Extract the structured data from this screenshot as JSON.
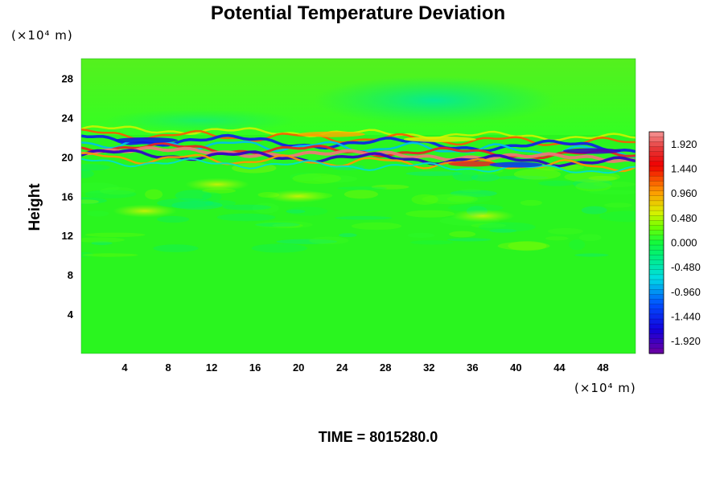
{
  "chart_data": {
    "type": "heatmap",
    "title": "Potential Temperature Deviation",
    "ylabel": "Height",
    "x_unit_label": "(×10⁴ m)",
    "y_unit_label": "(×10⁴ m)",
    "footer": "TIME = 8015280.0",
    "xlim": [
      0,
      51
    ],
    "ylim": [
      0,
      30
    ],
    "x_ticks": [
      4,
      8,
      12,
      16,
      20,
      24,
      28,
      32,
      36,
      40,
      44,
      48
    ],
    "y_ticks": [
      4,
      8,
      12,
      16,
      20,
      24,
      28
    ],
    "colorbar": {
      "range": [
        -2.16,
        2.16
      ],
      "tick_values": [
        1.92,
        1.44,
        0.96,
        0.48,
        0.0,
        -0.48,
        -0.96,
        -1.44,
        -1.92
      ],
      "tick_labels": [
        "1.920",
        "1.440",
        "0.960",
        "0.480",
        "0.000",
        "-0.480",
        "-0.960",
        "-1.440",
        "-1.920"
      ]
    },
    "features": {
      "background_value": 0.05,
      "upper_layer_value": -0.4,
      "perturbed_band_height": [
        19,
        22.5
      ],
      "turbulent_zone_height": [
        10,
        19
      ]
    }
  }
}
